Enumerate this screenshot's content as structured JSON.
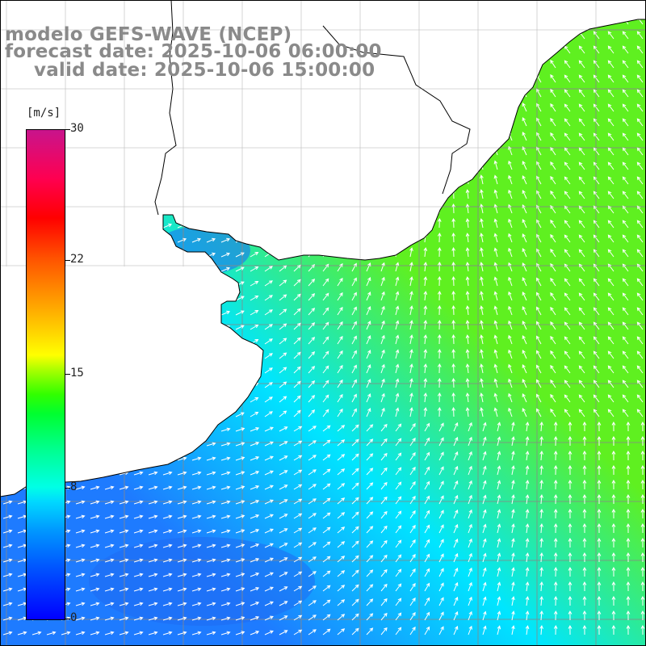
{
  "title": {
    "line1": "modelo GEFS-WAVE (NCEP)",
    "line2": "forecast date: 2025-10-06 06:00:00",
    "line3": "valid date: 2025-10-06 15:00:00"
  },
  "colorbar": {
    "units": "[m/s]",
    "ticks": [
      "30",
      "22",
      "15",
      "8",
      "0"
    ],
    "tick_values": [
      30,
      22,
      15,
      8,
      0
    ],
    "min": 0,
    "max": 30
  },
  "map": {
    "variable": "wind speed with direction arrows",
    "ocean_colors": {
      "low": "#1e7bff",
      "mid": "#00e6ff",
      "high": "#5ff020"
    },
    "land_color": "#ffffff",
    "coastline_color": "#000000",
    "grid_color": "#888888",
    "arrow_color": "#ffffff",
    "grid": true
  }
}
